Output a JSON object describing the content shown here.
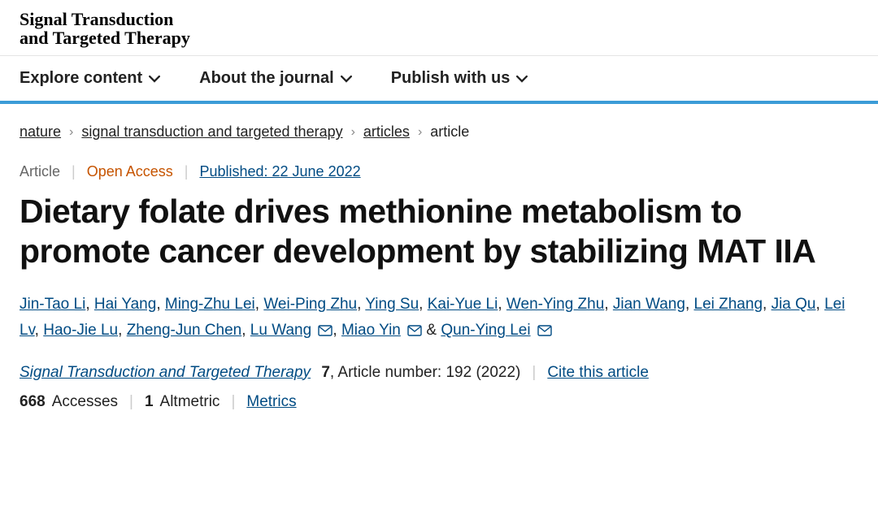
{
  "journal": {
    "title_line1": "Signal Transduction",
    "title_line2": "and Targeted Therapy"
  },
  "nav": {
    "items": [
      {
        "label": "Explore content"
      },
      {
        "label": "About the journal"
      },
      {
        "label": "Publish with us"
      }
    ]
  },
  "breadcrumb": {
    "items": [
      {
        "label": "nature",
        "link": true
      },
      {
        "label": "signal transduction and targeted therapy",
        "link": true
      },
      {
        "label": "articles",
        "link": true
      },
      {
        "label": "article",
        "link": false
      }
    ],
    "separator": "›"
  },
  "meta": {
    "type": "Article",
    "access": "Open Access",
    "published": "Published: 22 June 2022"
  },
  "title": "Dietary folate drives methionine metabolism to promote cancer development by stabilizing MAT IIA",
  "authors": [
    {
      "name": "Jin-Tao Li"
    },
    {
      "name": "Hai Yang"
    },
    {
      "name": "Ming-Zhu Lei"
    },
    {
      "name": "Wei-Ping Zhu"
    },
    {
      "name": "Ying Su"
    },
    {
      "name": "Kai-Yue Li"
    },
    {
      "name": "Wen-Ying Zhu"
    },
    {
      "name": "Jian Wang"
    },
    {
      "name": "Lei Zhang"
    },
    {
      "name": "Jia Qu"
    },
    {
      "name": "Lei Lv"
    },
    {
      "name": "Hao-Jie Lu"
    },
    {
      "name": "Zheng-Jun Chen"
    },
    {
      "name": "Lu Wang",
      "corresponding": true
    },
    {
      "name": "Miao Yin",
      "corresponding": true
    },
    {
      "name": "Qun-Ying Lei",
      "corresponding": true,
      "last": true
    }
  ],
  "citation": {
    "journal": "Signal Transduction and Targeted Therapy",
    "volume": "7",
    "article_info": ", Article number: 192 (2022)",
    "cite_label": "Cite this article"
  },
  "metrics": {
    "accesses_count": "668",
    "accesses_label": "Accesses",
    "altmetric_count": "1",
    "altmetric_label": "Altmetric",
    "metrics_label": "Metrics"
  },
  "colors": {
    "accent_border": "#3c9cd7",
    "link": "#004b83",
    "open_access": "#c65400"
  }
}
